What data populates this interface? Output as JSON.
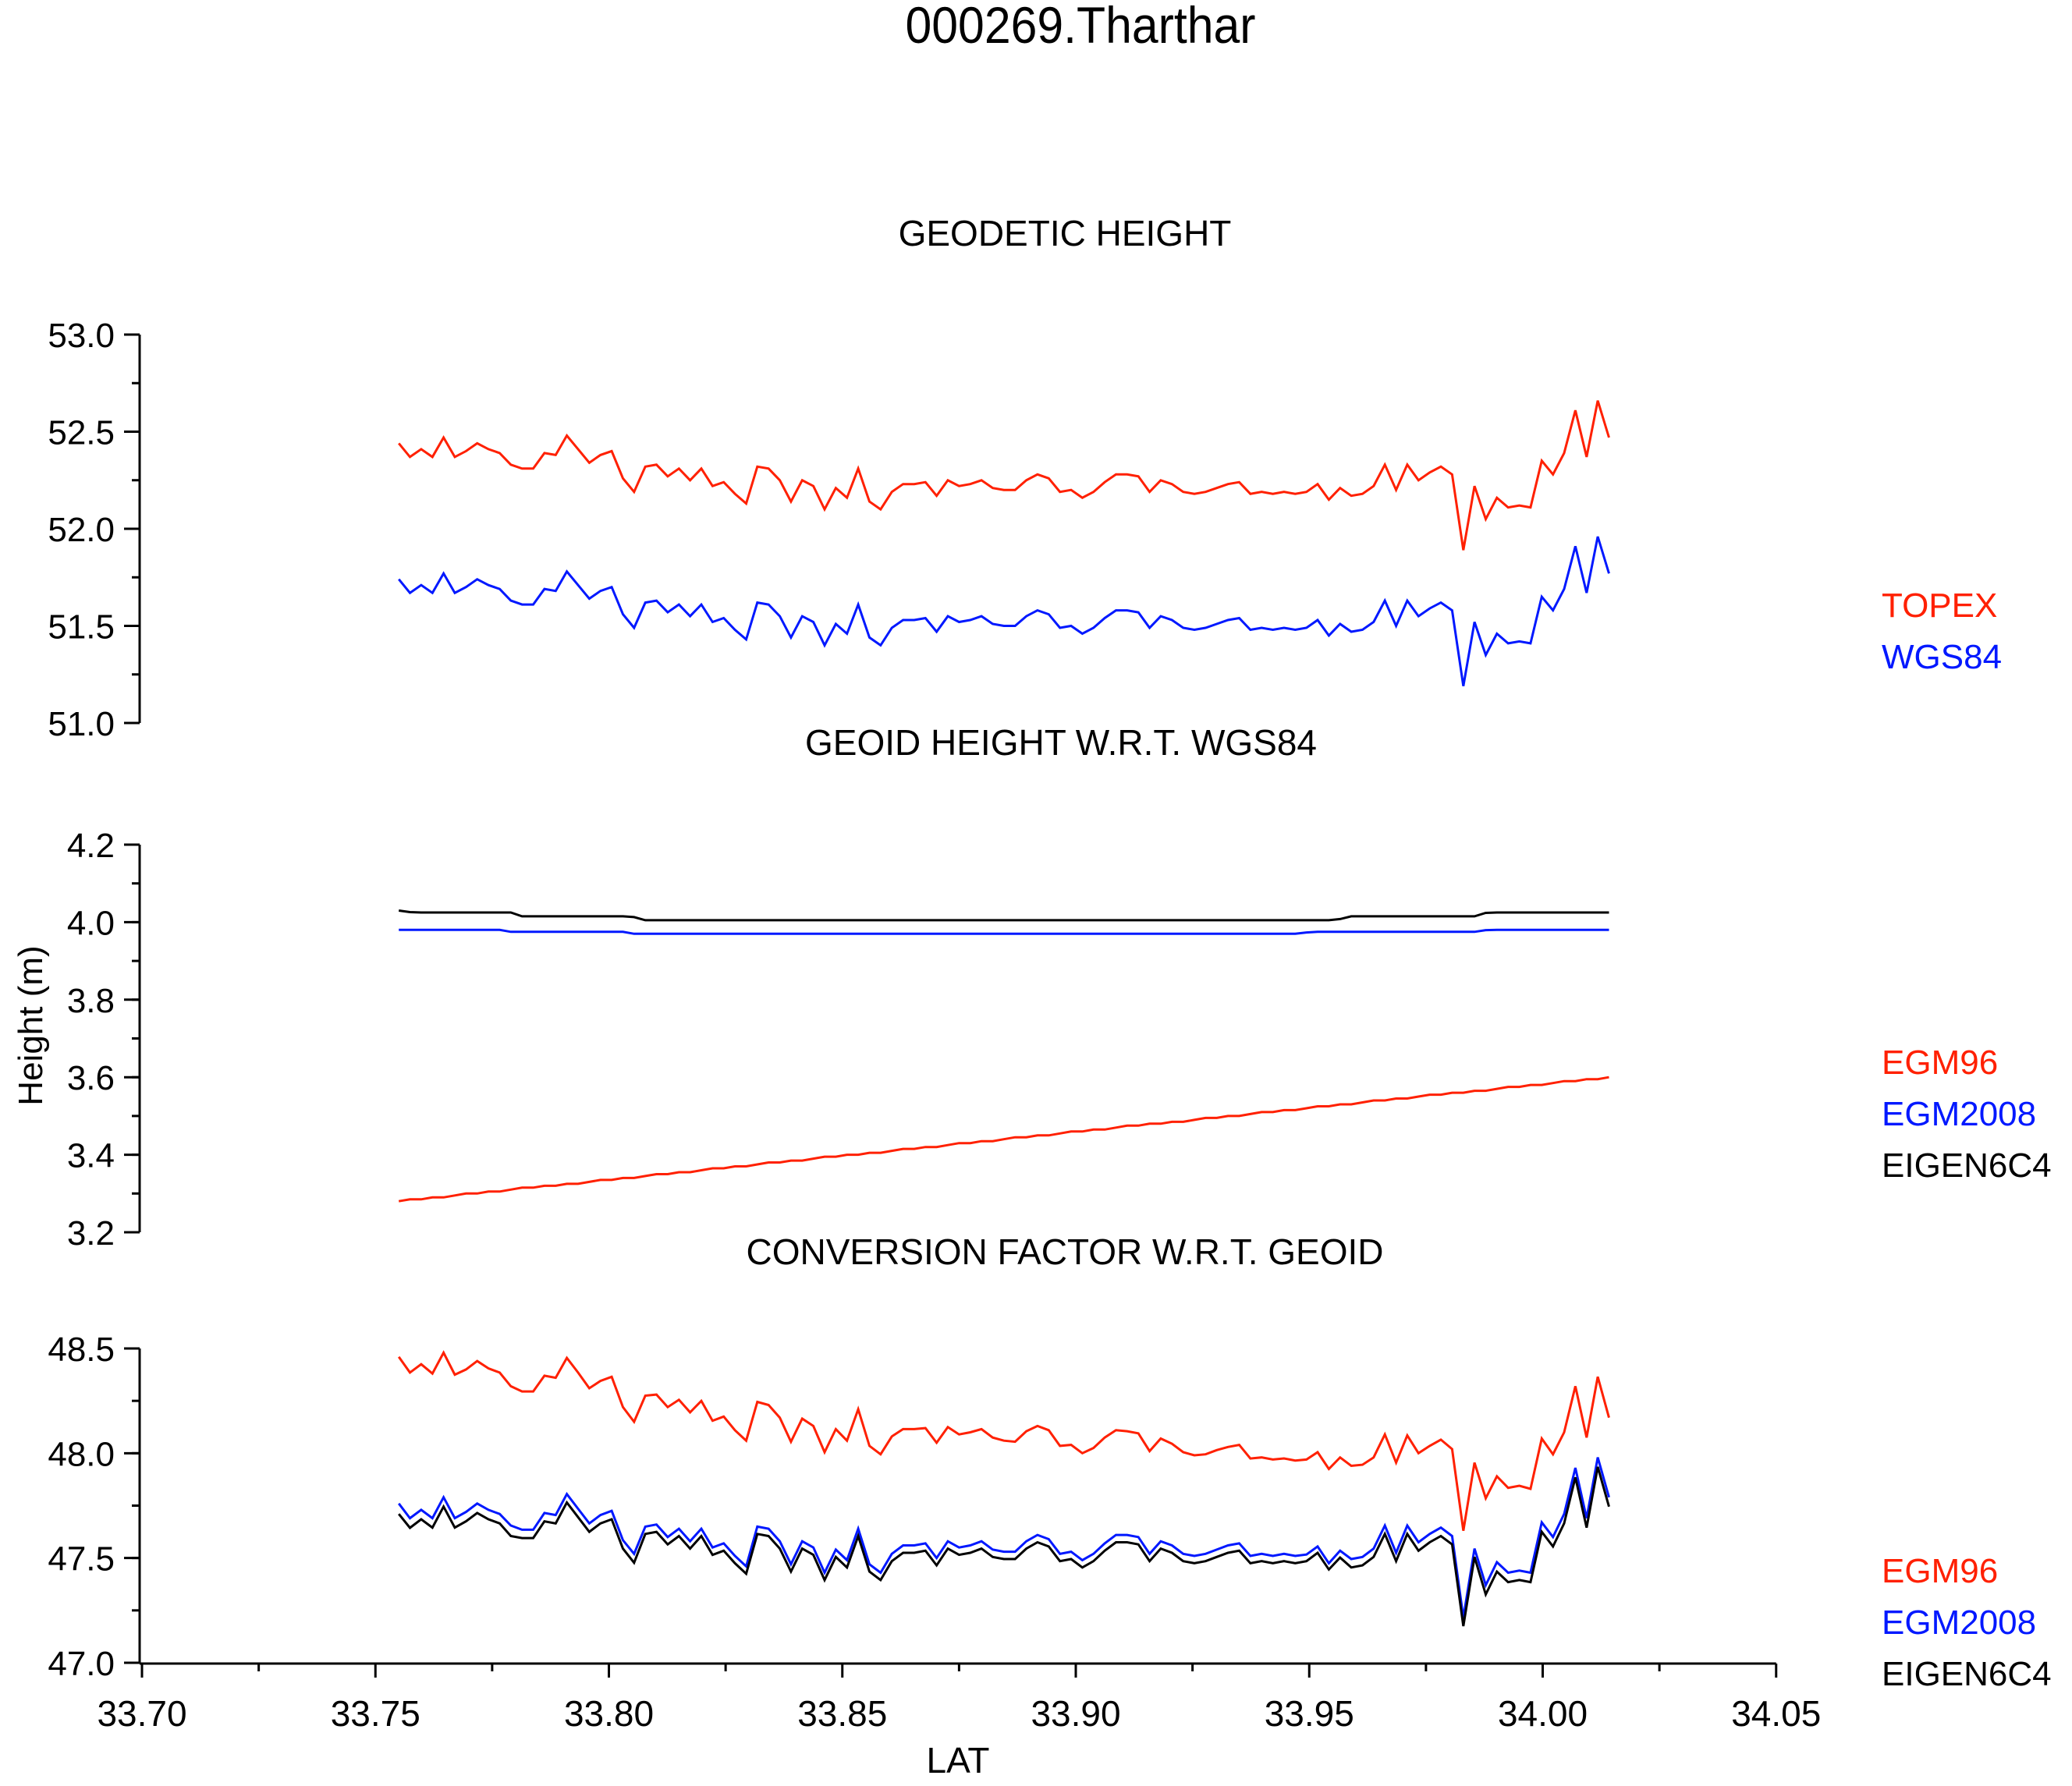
{
  "title": "000269.Tharthar",
  "x_axis": {
    "label": "LAT",
    "ticks": [
      "33.70",
      "33.75",
      "33.80",
      "33.85",
      "33.90",
      "33.95",
      "34.00",
      "34.05"
    ]
  },
  "y_axis_label": "Height (m)",
  "panels": [
    {
      "title": "GEODETIC HEIGHT",
      "y_ticks": [
        "53.0",
        "52.5",
        "52.0",
        "51.5",
        "51.0"
      ],
      "legend": [
        {
          "label": "TOPEX",
          "color": "#ff2000"
        },
        {
          "label": "WGS84",
          "color": "#0018ff"
        }
      ]
    },
    {
      "title": "GEOID HEIGHT W.R.T. WGS84",
      "y_ticks": [
        "4.2",
        "4.0",
        "3.8",
        "3.6",
        "3.4",
        "3.2"
      ],
      "legend": [
        {
          "label": "EGM96",
          "color": "#ff2000"
        },
        {
          "label": "EGM2008",
          "color": "#0018ff"
        },
        {
          "label": "EIGEN6C4",
          "color": "#000000"
        }
      ]
    },
    {
      "title": "CONVERSION FACTOR W.R.T. GEOID",
      "y_ticks": [
        "48.5",
        "48.0",
        "47.5",
        "47.0"
      ],
      "legend": [
        {
          "label": "EGM96",
          "color": "#ff2000"
        },
        {
          "label": "EGM2008",
          "color": "#0018ff"
        },
        {
          "label": "EIGEN6C4",
          "color": "#000000"
        }
      ]
    }
  ],
  "chart_data": [
    {
      "type": "line",
      "title": "GEODETIC HEIGHT",
      "xlabel": "LAT",
      "ylabel": "Height (m)",
      "xlim": [
        33.7,
        34.05
      ],
      "ylim": [
        51.0,
        53.0
      ],
      "x_ticks": [
        33.7,
        33.75,
        33.8,
        33.85,
        33.9,
        33.95,
        34.0,
        34.05
      ],
      "y_ticks": [
        51.0,
        51.5,
        52.0,
        52.5,
        53.0
      ],
      "grid": false,
      "legend_position": "right",
      "x_start": 33.755,
      "x_step": 0.0024,
      "series": [
        {
          "name": "TOPEX",
          "color": "#ff2000",
          "values": [
            52.44,
            52.37,
            52.41,
            52.37,
            52.47,
            52.37,
            52.4,
            52.44,
            52.41,
            52.39,
            52.33,
            52.31,
            52.31,
            52.39,
            52.38,
            52.48,
            52.41,
            52.34,
            52.38,
            52.4,
            52.26,
            52.19,
            52.32,
            52.33,
            52.27,
            52.31,
            52.25,
            52.31,
            52.22,
            52.24,
            52.18,
            52.13,
            52.32,
            52.31,
            52.25,
            52.14,
            52.25,
            52.22,
            52.1,
            52.21,
            52.16,
            52.31,
            52.14,
            52.1,
            52.19,
            52.23,
            52.23,
            52.24,
            52.17,
            52.25,
            52.22,
            52.23,
            52.25,
            52.21,
            52.2,
            52.2,
            52.25,
            52.28,
            52.26,
            52.19,
            52.2,
            52.16,
            52.19,
            52.24,
            52.28,
            52.28,
            52.27,
            52.19,
            52.25,
            52.23,
            52.19,
            52.18,
            52.19,
            52.21,
            52.23,
            52.24,
            52.18,
            52.19,
            52.18,
            52.19,
            52.18,
            52.19,
            52.23,
            52.15,
            52.21,
            52.17,
            52.18,
            52.22,
            52.33,
            52.2,
            52.33,
            52.25,
            52.29,
            52.32,
            52.28,
            51.89,
            52.22,
            52.05,
            52.16,
            52.11,
            52.12,
            52.11,
            52.35,
            52.28,
            52.39,
            52.61,
            52.37,
            52.66,
            52.47
          ]
        },
        {
          "name": "WGS84",
          "color": "#0018ff",
          "values": [
            51.74,
            51.67,
            51.71,
            51.67,
            51.77,
            51.67,
            51.7,
            51.74,
            51.71,
            51.69,
            51.63,
            51.61,
            51.61,
            51.69,
            51.68,
            51.78,
            51.71,
            51.64,
            51.68,
            51.7,
            51.56,
            51.49,
            51.62,
            51.63,
            51.57,
            51.61,
            51.55,
            51.61,
            51.52,
            51.54,
            51.48,
            51.43,
            51.62,
            51.61,
            51.55,
            51.44,
            51.55,
            51.52,
            51.4,
            51.51,
            51.46,
            51.61,
            51.44,
            51.4,
            51.49,
            51.53,
            51.53,
            51.54,
            51.47,
            51.55,
            51.52,
            51.53,
            51.55,
            51.51,
            51.5,
            51.5,
            51.55,
            51.58,
            51.56,
            51.49,
            51.5,
            51.46,
            51.49,
            51.54,
            51.58,
            51.58,
            51.57,
            51.49,
            51.55,
            51.53,
            51.49,
            51.48,
            51.49,
            51.51,
            51.53,
            51.54,
            51.48,
            51.49,
            51.48,
            51.49,
            51.48,
            51.49,
            51.53,
            51.45,
            51.51,
            51.47,
            51.48,
            51.52,
            51.63,
            51.5,
            51.63,
            51.55,
            51.59,
            51.62,
            51.58,
            51.19,
            51.52,
            51.35,
            51.46,
            51.41,
            51.42,
            51.41,
            51.65,
            51.58,
            51.69,
            51.91,
            51.67,
            51.96,
            51.77
          ]
        }
      ]
    },
    {
      "type": "line",
      "title": "GEOID HEIGHT W.R.T. WGS84",
      "xlabel": "LAT",
      "ylabel": "Height (m)",
      "xlim": [
        33.7,
        34.05
      ],
      "ylim": [
        3.2,
        4.2
      ],
      "y_ticks": [
        3.2,
        3.4,
        3.6,
        3.8,
        4.0,
        4.2
      ],
      "grid": false,
      "legend_position": "right",
      "x_start": 33.755,
      "x_step": 0.0024,
      "series": [
        {
          "name": "EGM96",
          "color": "#ff2000",
          "start": 3.28,
          "end": 3.6,
          "step": 0.005,
          "shape": "linear-stepped"
        },
        {
          "name": "EGM2008",
          "color": "#0018ff",
          "breakpoints": [
            [
              33.755,
              3.98
            ],
            [
              33.777,
              3.98
            ],
            [
              33.779,
              3.975
            ],
            [
              33.803,
              3.975
            ],
            [
              33.805,
              3.97
            ],
            [
              33.948,
              3.97
            ],
            [
              33.95,
              3.975
            ],
            [
              33.986,
              3.975
            ],
            [
              33.988,
              3.98
            ],
            [
              34.004,
              3.98
            ]
          ]
        },
        {
          "name": "EIGEN6C4",
          "color": "#000000",
          "breakpoints": [
            [
              33.755,
              4.03
            ],
            [
              33.758,
              4.025
            ],
            [
              33.779,
              4.025
            ],
            [
              33.781,
              4.015
            ],
            [
              33.805,
              4.015
            ],
            [
              33.807,
              4.005
            ],
            [
              33.956,
              4.005
            ],
            [
              33.958,
              4.015
            ],
            [
              33.986,
              4.015
            ],
            [
              33.988,
              4.025
            ],
            [
              34.004,
              4.025
            ]
          ]
        }
      ]
    },
    {
      "type": "line",
      "title": "CONVERSION FACTOR W.R.T. GEOID",
      "xlabel": "LAT",
      "ylabel": "Height (m)",
      "xlim": [
        33.7,
        34.05
      ],
      "ylim": [
        47.0,
        48.5
      ],
      "y_ticks": [
        47.0,
        47.5,
        48.0,
        48.5
      ],
      "grid": false,
      "legend_position": "right",
      "x_start": 33.755,
      "x_step": 0.0024,
      "series": [
        {
          "name": "EGM96",
          "color": "#ff2000",
          "derived": "WGS84 - geoid EGM96",
          "first": 48.46,
          "last": 48.17
        },
        {
          "name": "EGM2008",
          "color": "#0018ff",
          "derived": "WGS84 - geoid EGM2008",
          "first": 47.76,
          "last": 47.79
        },
        {
          "name": "EIGEN6C4",
          "color": "#000000",
          "derived": "WGS84 - geoid EIGEN6C4",
          "first": 47.71,
          "last": 47.75
        }
      ]
    }
  ]
}
